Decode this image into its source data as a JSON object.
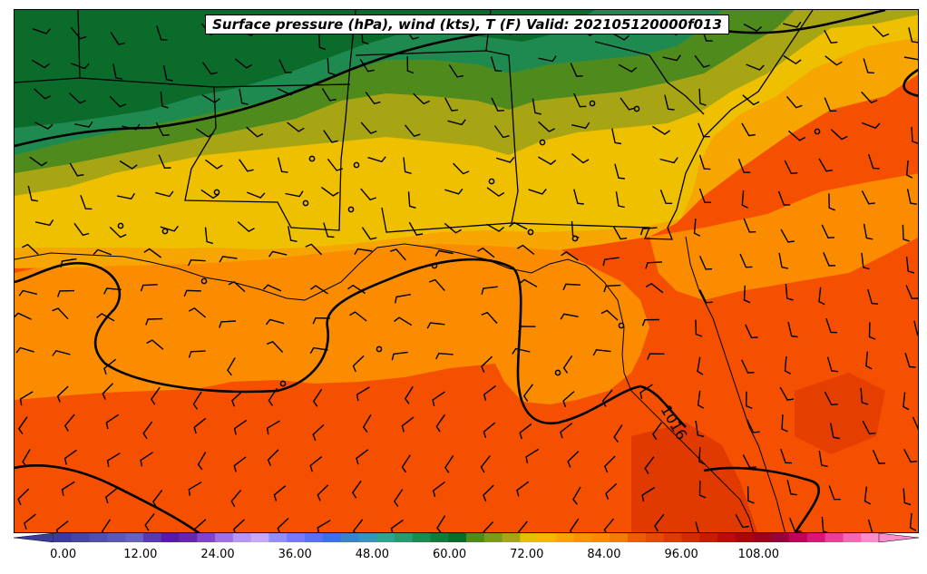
{
  "title": "Surface pressure (hPa), wind (kts), T (F) Valid: 202105120000f013",
  "isobar_label": "1016",
  "colorbar": {
    "tick_labels": [
      "0.00",
      "12.00",
      "24.00",
      "36.00",
      "48.00",
      "60.00",
      "72.00",
      "84.00",
      "96.00",
      "108.00"
    ],
    "min": -6,
    "max": 123,
    "step": 3,
    "colors": [
      "#3b3b9a",
      "#45479f",
      "#5050a8",
      "#5a5ab0",
      "#6464b8",
      "#5a3aa8",
      "#5a1aa5",
      "#6a22b8",
      "#8440d0",
      "#a070e0",
      "#b895ee",
      "#c9a9f4",
      "#9090f4",
      "#7777ff",
      "#5a6ef8",
      "#3b6ef0",
      "#3c82c8",
      "#3a92b8",
      "#34a090",
      "#2e9870",
      "#1f8a4f",
      "#137a3a",
      "#0a6b2a",
      "#4f8a1c",
      "#7b9a18",
      "#a8a514",
      "#e8be00",
      "#f2b800",
      "#f7a500",
      "#f99400",
      "#ff8800",
      "#f77a00",
      "#f05a00",
      "#e84a00",
      "#e03a00",
      "#d62a00",
      "#cc1a00",
      "#c00a0a",
      "#b0040c",
      "#a0001a",
      "#9c0038",
      "#c4005a",
      "#dc1478",
      "#ef3c98",
      "#f766b4",
      "#fc8ccc"
    ]
  },
  "temperature_bands": [
    {
      "level": "60-63",
      "color": "#0a6b2a"
    },
    {
      "level": "63-66",
      "color": "#1f8a4f"
    },
    {
      "level": "66-69",
      "color": "#4f8a1c"
    },
    {
      "level": "69-72",
      "color": "#a8a514"
    },
    {
      "level": "72-75",
      "color": "#eec000"
    },
    {
      "level": "75-78",
      "color": "#f7a500"
    },
    {
      "level": "78-81",
      "color": "#fb8c00"
    },
    {
      "level": "81-84",
      "color": "#f55000"
    },
    {
      "level": "84-87",
      "color": "#e03a00"
    }
  ]
}
